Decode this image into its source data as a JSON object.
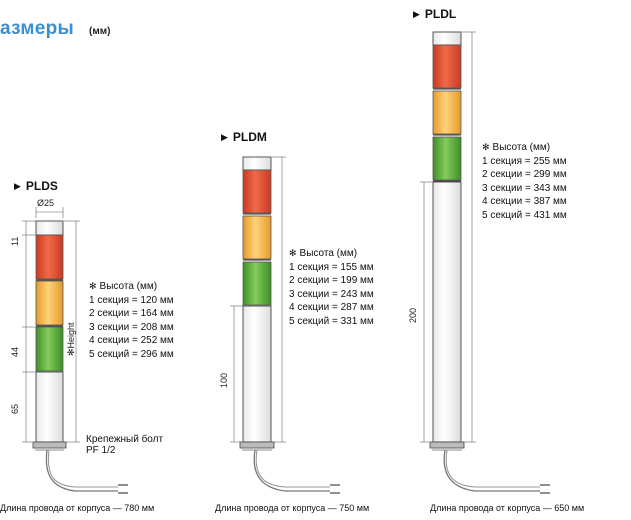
{
  "header": {
    "title": "азмеры",
    "unit": "(мм)"
  },
  "colors": {
    "title": "#3a8fd0",
    "red": "#e5452c",
    "amber": "#f7b742",
    "green": "#5fae3d"
  },
  "plds": {
    "label": "PLDS",
    "diameter": "Ø25",
    "dim_top": "11",
    "dim_mid": "44",
    "dim_bottom": "65",
    "height_label": "✻Height",
    "spec_title": "Высота (мм)",
    "rows": [
      "1 секция = 120 мм",
      "2 секции = 164 мм",
      "3 секции = 208 мм",
      "4 секции = 252 мм",
      "5 секций = 296 мм"
    ],
    "bolt_line1": "Крепежный болт",
    "bolt_line2": "PF 1/2",
    "footer": "Длина провода от корпуса — 780 мм"
  },
  "pldm": {
    "label": "PLDM",
    "dim_bottom": "100",
    "spec_title": "Высота (мм)",
    "rows": [
      "1 секция = 155 мм",
      "2 секции = 199 мм",
      "3 секции = 243 мм",
      "4 секции = 287 мм",
      "5 секций = 331 мм"
    ],
    "footer": "Длина провода от корпуса — 750 мм"
  },
  "pldl": {
    "label": "PLDL",
    "dim_bottom": "200",
    "spec_title": "Высота (мм)",
    "rows": [
      "1 секция = 255 мм",
      "2 секции = 299 мм",
      "3 секции = 343 мм",
      "4 секции = 387 мм",
      "5 секций = 431 мм"
    ],
    "footer": "Длина провода от корпуса — 650 мм"
  }
}
